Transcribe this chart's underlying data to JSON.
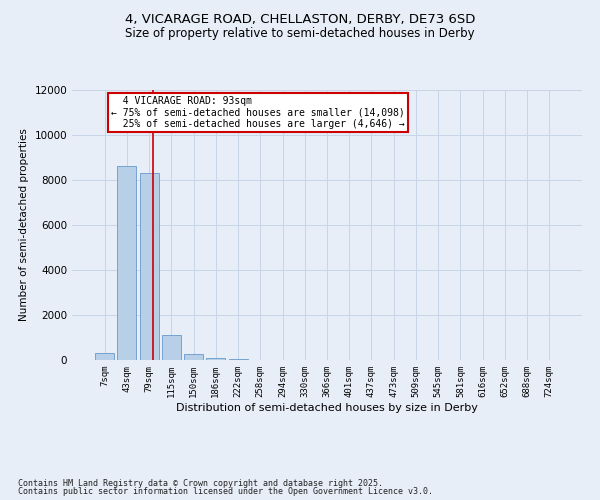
{
  "title1": "4, VICARAGE ROAD, CHELLASTON, DERBY, DE73 6SD",
  "title2": "Size of property relative to semi-detached houses in Derby",
  "xlabel": "Distribution of semi-detached houses by size in Derby",
  "ylabel": "Number of semi-detached properties",
  "bar_labels": [
    "7sqm",
    "43sqm",
    "79sqm",
    "115sqm",
    "150sqm",
    "186sqm",
    "222sqm",
    "258sqm",
    "294sqm",
    "330sqm",
    "366sqm",
    "401sqm",
    "437sqm",
    "473sqm",
    "509sqm",
    "545sqm",
    "581sqm",
    "616sqm",
    "652sqm",
    "688sqm",
    "724sqm"
  ],
  "bar_values": [
    290,
    8620,
    8320,
    1100,
    255,
    95,
    45,
    5,
    0,
    0,
    0,
    0,
    0,
    0,
    0,
    0,
    0,
    0,
    0,
    0,
    0
  ],
  "bar_color": "#b8cfe8",
  "bar_edge_color": "#6699cc",
  "ylim": [
    0,
    12000
  ],
  "yticks": [
    0,
    2000,
    4000,
    6000,
    8000,
    10000,
    12000
  ],
  "red_line_x": 2.18,
  "red_line_color": "#cc0000",
  "property_label": "4 VICARAGE ROAD: 93sqm",
  "smaller_pct": "75%",
  "smaller_count": "14,098",
  "larger_pct": "25%",
  "larger_count": "4,646",
  "annotation_box_color": "#ffffff",
  "annotation_box_edge_color": "#cc0000",
  "grid_color": "#c8d4e8",
  "bg_color": "#e8eef8",
  "footer1": "Contains HM Land Registry data © Crown copyright and database right 2025.",
  "footer2": "Contains public sector information licensed under the Open Government Licence v3.0."
}
